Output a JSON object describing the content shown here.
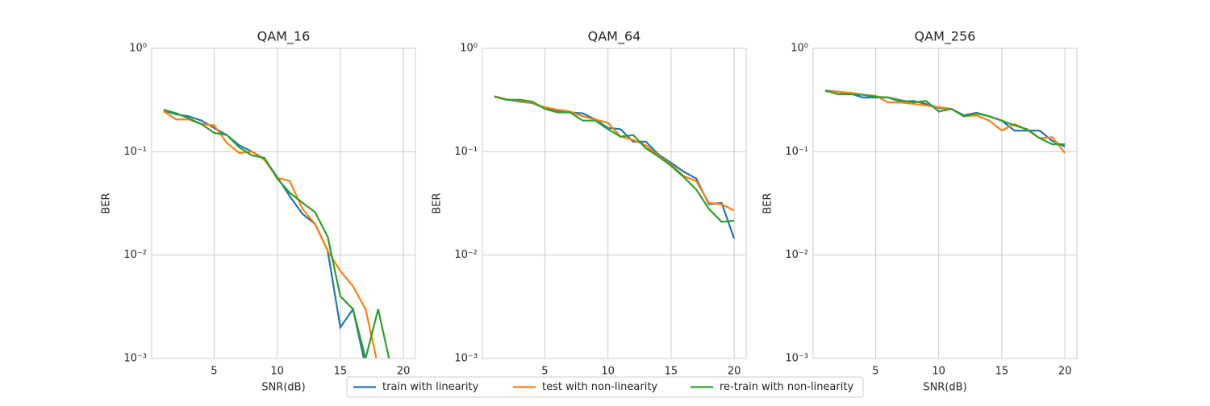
{
  "chart_data": [
    {
      "type": "line",
      "title": "QAM_16",
      "x_label": "SNR(dB)",
      "y_label": "BER",
      "log_y": true,
      "grid": true,
      "x": [
        1,
        2,
        3,
        4,
        5,
        6,
        7,
        8,
        9,
        10,
        11,
        12,
        13,
        14,
        15,
        16,
        17,
        18,
        19,
        20
      ],
      "xlim": [
        0.05,
        20.95
      ],
      "xticks": [
        5,
        10,
        15,
        20
      ],
      "ylim": [
        0.001,
        1
      ],
      "yticks": [
        {
          "value": 0.001,
          "label": "10⁻³"
        },
        {
          "value": 0.01,
          "label": "10⁻²"
        },
        {
          "value": 0.1,
          "label": "10⁻¹"
        },
        {
          "value": 1,
          "label": "10⁰"
        }
      ],
      "series": [
        {
          "name": "train with linearity",
          "color": "#1f77b4",
          "values": [
            0.25,
            0.23,
            0.22,
            0.2,
            0.17,
            0.145,
            0.115,
            0.1,
            0.085,
            0.057,
            0.037,
            0.025,
            0.02,
            0.011,
            0.002,
            0.003,
            0,
            0,
            0,
            0
          ]
        },
        {
          "name": "test with non-linearity",
          "color": "#ff7f0e",
          "values": [
            0.246,
            0.205,
            0.205,
            0.185,
            0.18,
            0.122,
            0.097,
            0.1,
            0.083,
            0.056,
            0.052,
            0.028,
            0.02,
            0.011,
            0.007,
            0.005,
            0.003,
            0,
            0,
            0
          ]
        },
        {
          "name": "re-train with non-linearity",
          "color": "#2ca02c",
          "values": [
            0.255,
            0.235,
            0.21,
            0.185,
            0.152,
            0.145,
            0.11,
            0.092,
            0.087,
            0.055,
            0.04,
            0.032,
            0.026,
            0.015,
            0.004,
            0.003,
            0.001,
            0.003,
            0,
            0
          ]
        }
      ]
    },
    {
      "type": "line",
      "title": "QAM_64",
      "x_label": "SNR(dB)",
      "y_label": "BER",
      "log_y": true,
      "grid": true,
      "x": [
        1,
        2,
        3,
        4,
        5,
        6,
        7,
        8,
        9,
        10,
        11,
        12,
        13,
        14,
        15,
        16,
        17,
        18,
        19,
        20
      ],
      "xlim": [
        0.05,
        20.95
      ],
      "xticks": [
        5,
        10,
        15,
        20
      ],
      "ylim": [
        0.001,
        1
      ],
      "yticks": [
        {
          "value": 0.001,
          "label": "10⁻³"
        },
        {
          "value": 0.01,
          "label": "10⁻²"
        },
        {
          "value": 0.1,
          "label": "10⁻¹"
        },
        {
          "value": 1,
          "label": "10⁰"
        }
      ],
      "series": [
        {
          "name": "train with linearity",
          "color": "#1f77b4",
          "values": [
            0.34,
            0.32,
            0.305,
            0.295,
            0.265,
            0.25,
            0.24,
            0.235,
            0.205,
            0.17,
            0.165,
            0.125,
            0.125,
            0.094,
            0.078,
            0.064,
            0.055,
            0.031,
            0.032,
            0.0145
          ]
        },
        {
          "name": "test with non-linearity",
          "color": "#ff7f0e",
          "values": [
            0.345,
            0.32,
            0.31,
            0.295,
            0.27,
            0.255,
            0.245,
            0.22,
            0.205,
            0.19,
            0.14,
            0.13,
            0.115,
            0.092,
            0.075,
            0.058,
            0.052,
            0.032,
            0.031,
            0.027
          ]
        },
        {
          "name": "re-train with non-linearity",
          "color": "#2ca02c",
          "values": [
            0.34,
            0.318,
            0.318,
            0.305,
            0.26,
            0.24,
            0.24,
            0.2,
            0.2,
            0.165,
            0.14,
            0.145,
            0.108,
            0.09,
            0.073,
            0.057,
            0.043,
            0.028,
            0.021,
            0.0215
          ]
        }
      ]
    },
    {
      "type": "line",
      "title": "QAM_256",
      "x_label": "SNR(dB)",
      "y_label": "BER",
      "log_y": true,
      "grid": true,
      "x": [
        1,
        2,
        3,
        4,
        5,
        6,
        7,
        8,
        9,
        10,
        11,
        12,
        13,
        14,
        15,
        16,
        17,
        18,
        19,
        20
      ],
      "xlim": [
        0.05,
        20.95
      ],
      "xticks": [
        5,
        10,
        15,
        20
      ],
      "ylim": [
        0.001,
        1
      ],
      "yticks": [
        {
          "value": 0.001,
          "label": "10⁻³"
        },
        {
          "value": 0.01,
          "label": "10⁻²"
        },
        {
          "value": 0.1,
          "label": "10⁻¹"
        },
        {
          "value": 1,
          "label": "10⁰"
        }
      ],
      "series": [
        {
          "name": "train with linearity",
          "color": "#1f77b4",
          "values": [
            0.39,
            0.38,
            0.365,
            0.335,
            0.335,
            0.335,
            0.305,
            0.31,
            0.29,
            0.265,
            0.26,
            0.225,
            0.238,
            0.22,
            0.2,
            0.16,
            0.16,
            0.16,
            0.127,
            0.112
          ]
        },
        {
          "name": "test with non-linearity",
          "color": "#ff7f0e",
          "values": [
            0.385,
            0.38,
            0.372,
            0.355,
            0.348,
            0.3,
            0.3,
            0.29,
            0.28,
            0.27,
            0.26,
            0.22,
            0.225,
            0.2,
            0.16,
            0.185,
            0.163,
            0.135,
            0.138,
            0.097
          ]
        },
        {
          "name": "re-train with non-linearity",
          "color": "#2ca02c",
          "values": [
            0.39,
            0.36,
            0.36,
            0.355,
            0.34,
            0.335,
            0.315,
            0.3,
            0.31,
            0.245,
            0.26,
            0.22,
            0.235,
            0.22,
            0.2,
            0.18,
            0.165,
            0.135,
            0.118,
            0.118
          ]
        }
      ]
    }
  ]
}
